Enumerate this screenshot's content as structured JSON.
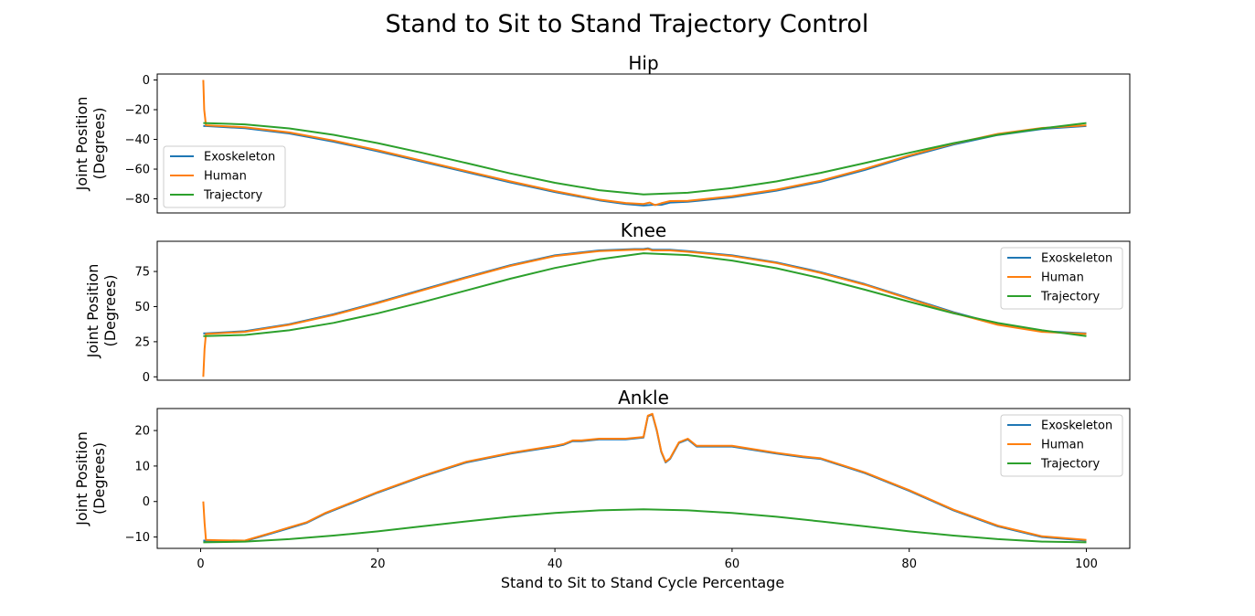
{
  "figure": {
    "title": "Stand to Sit to Stand Trajectory Control",
    "xlabel": "Stand to Sit to Stand Cycle Percentage"
  },
  "legend": [
    "Exoskeleton",
    "Human",
    "Trajectory"
  ],
  "colors": {
    "Exoskeleton": "#1f77b4",
    "Human": "#ff7f0e",
    "Trajectory": "#2ca02c",
    "axes": "#000000",
    "background": "#ffffff"
  },
  "chart_data": [
    {
      "type": "line",
      "title": "Hip",
      "ylabel": "Joint Position\n(Degrees)",
      "xlim": [
        -4.9,
        104.9
      ],
      "ylim": [
        -89.5,
        4
      ],
      "xticks": [],
      "yticks": [
        0,
        -20,
        -40,
        -60,
        -80
      ],
      "legend_position": "center-left",
      "series": [
        {
          "name": "Exoskeleton",
          "x": [
            0.3,
            0.6,
            5,
            10,
            15,
            20,
            25,
            30,
            35,
            40,
            45,
            48,
            50,
            51,
            52,
            53,
            55,
            60,
            65,
            70,
            75,
            80,
            85,
            90,
            95,
            100
          ],
          "y": [
            -31,
            -31,
            -32.5,
            -36,
            -41.5,
            -48,
            -55,
            -62,
            -69,
            -75.5,
            -81,
            -83.5,
            -84.5,
            -84,
            -84,
            -82.5,
            -82,
            -79,
            -74.5,
            -68.5,
            -60.5,
            -51.5,
            -43.5,
            -37,
            -33,
            -31
          ]
        },
        {
          "name": "Human",
          "x": [
            0.3,
            0.4,
            0.6,
            5,
            10,
            15,
            20,
            25,
            30,
            35,
            40,
            45,
            48,
            50,
            50.7,
            51.3,
            52,
            53,
            55,
            60,
            65,
            70,
            75,
            80,
            85,
            90,
            95,
            100
          ],
          "y": [
            0,
            -20,
            -30.5,
            -31.8,
            -35.3,
            -40.8,
            -47.3,
            -54.3,
            -61.3,
            -68.3,
            -74.8,
            -80.5,
            -82.8,
            -83.5,
            -82.5,
            -84.2,
            -83,
            -81.5,
            -81.3,
            -78.2,
            -73.8,
            -67.8,
            -59.8,
            -50.8,
            -42.8,
            -36.3,
            -32.3,
            -30.5
          ]
        },
        {
          "name": "Trajectory",
          "x": [
            0.3,
            5,
            10,
            15,
            20,
            25,
            30,
            35,
            40,
            45,
            50,
            55,
            60,
            65,
            70,
            75,
            80,
            85,
            90,
            95,
            100
          ],
          "y": [
            -29,
            -29.9,
            -32.6,
            -36.9,
            -42.5,
            -49,
            -55.9,
            -62.9,
            -69.2,
            -74.2,
            -77,
            -75.9,
            -72.7,
            -68.3,
            -62.5,
            -55.9,
            -49,
            -42.5,
            -36.9,
            -32.6,
            -29
          ]
        }
      ]
    },
    {
      "type": "line",
      "title": "Knee",
      "ylabel": "Joint Position\n(Degrees)",
      "xlim": [
        -4.9,
        104.9
      ],
      "ylim": [
        -2.4,
        96.5
      ],
      "xticks": [],
      "yticks": [
        75,
        50,
        25,
        0
      ],
      "legend_position": "upper-right",
      "series": [
        {
          "name": "Exoskeleton",
          "x": [
            0.3,
            0.6,
            5,
            10,
            15,
            20,
            25,
            30,
            35,
            40,
            45,
            49,
            50,
            50.5,
            51,
            53,
            55,
            60,
            65,
            70,
            75,
            80,
            85,
            90,
            95,
            100
          ],
          "y": [
            31,
            31,
            32.5,
            37.5,
            44.5,
            53,
            62,
            71,
            79.5,
            86.5,
            90,
            91,
            91,
            91.5,
            90.5,
            90.5,
            89.5,
            86.5,
            81.5,
            74.5,
            66,
            56,
            46,
            37.5,
            32.5,
            31
          ]
        },
        {
          "name": "Human",
          "x": [
            0.3,
            0.45,
            0.6,
            5,
            10,
            15,
            20,
            25,
            30,
            35,
            40,
            45,
            49,
            50,
            50.5,
            51,
            53,
            55,
            60,
            65,
            70,
            75,
            80,
            85,
            90,
            95,
            100
          ],
          "y": [
            0,
            20,
            30.5,
            32,
            37,
            44,
            52.5,
            61.5,
            70.5,
            79,
            86,
            89.5,
            90.5,
            90.5,
            91,
            90,
            90,
            89,
            86,
            81,
            74,
            65.5,
            55.5,
            45.5,
            37,
            32,
            30.5
          ]
        },
        {
          "name": "Trajectory",
          "x": [
            0.3,
            5,
            10,
            15,
            20,
            25,
            30,
            35,
            40,
            45,
            50,
            55,
            60,
            65,
            70,
            75,
            80,
            85,
            90,
            95,
            100
          ],
          "y": [
            29,
            29.8,
            33.1,
            38.4,
            45.2,
            53.1,
            61.5,
            69.9,
            77.5,
            83.6,
            88,
            86.7,
            82.8,
            77.3,
            70.2,
            62,
            53.5,
            45.2,
            38.4,
            33.1,
            29
          ]
        }
      ]
    },
    {
      "type": "line",
      "title": "Ankle",
      "ylabel": "Joint Position\n(Degrees)",
      "xlim": [
        -4.9,
        104.9
      ],
      "ylim": [
        -13.2,
        26.2
      ],
      "xticks": [
        0,
        20,
        40,
        60,
        80,
        100
      ],
      "yticks": [
        20,
        10,
        0,
        -10
      ],
      "legend_position": "upper-right",
      "series": [
        {
          "name": "Exoskeleton",
          "x": [
            0.3,
            0.6,
            2,
            5,
            8,
            10,
            12,
            14,
            16,
            18,
            20,
            25,
            30,
            35,
            40,
            41,
            42,
            43,
            45,
            48,
            50,
            50.5,
            51,
            51.5,
            52,
            52.5,
            53,
            54,
            55,
            56,
            60,
            65,
            68,
            70,
            75,
            80,
            85,
            90,
            95,
            100
          ],
          "y": [
            -11,
            -11,
            -11,
            -11.2,
            -9,
            -7.5,
            -6,
            -3.5,
            -1.5,
            0.5,
            2.5,
            7,
            11,
            13.5,
            15.5,
            16,
            17,
            17,
            17.5,
            17.5,
            18,
            24,
            24.5,
            20,
            14,
            11,
            12,
            16.5,
            17.5,
            15.5,
            15.5,
            13.5,
            12.5,
            12,
            8,
            3,
            -2.5,
            -7,
            -10,
            -11
          ]
        },
        {
          "name": "Human",
          "x": [
            0.3,
            0.45,
            0.6,
            2,
            5,
            8,
            10,
            12,
            14,
            16,
            18,
            20,
            25,
            30,
            35,
            40,
            41,
            42,
            43,
            45,
            48,
            50,
            50.5,
            51,
            51.5,
            52,
            52.5,
            53,
            54,
            55,
            56,
            60,
            65,
            68,
            70,
            75,
            80,
            85,
            90,
            95,
            100
          ],
          "y": [
            0,
            -6,
            -10.8,
            -10.9,
            -11,
            -8.8,
            -7.3,
            -5.8,
            -3.3,
            -1.3,
            0.7,
            2.7,
            7.2,
            11.2,
            13.7,
            15.7,
            16.2,
            17.2,
            17.2,
            17.7,
            17.7,
            18.2,
            24.2,
            24.7,
            20.2,
            14.2,
            11.2,
            12.2,
            16.7,
            17.7,
            15.7,
            15.7,
            13.7,
            12.7,
            12.2,
            8.2,
            3.2,
            -2.3,
            -6.8,
            -9.8,
            -10.8
          ]
        },
        {
          "name": "Trajectory",
          "x": [
            0.3,
            5,
            10,
            15,
            20,
            25,
            30,
            35,
            40,
            45,
            50,
            55,
            60,
            65,
            70,
            75,
            80,
            85,
            90,
            95,
            100
          ],
          "y": [
            -11.5,
            -11.3,
            -10.6,
            -9.6,
            -8.4,
            -7,
            -5.6,
            -4.3,
            -3.2,
            -2.5,
            -2.2,
            -2.5,
            -3.2,
            -4.3,
            -5.6,
            -7,
            -8.4,
            -9.6,
            -10.6,
            -11.3,
            -11.5
          ]
        }
      ]
    }
  ]
}
